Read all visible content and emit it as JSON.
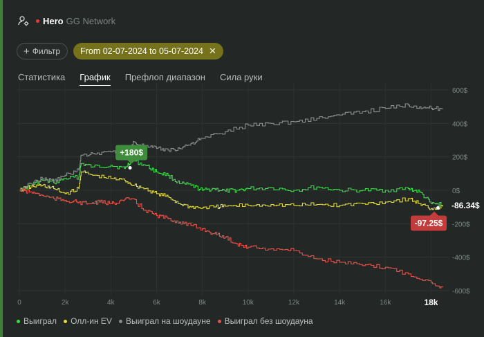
{
  "header": {
    "player": "Hero",
    "network": "GG Network",
    "user_icon": "user-settings-icon"
  },
  "filters": {
    "filter_label": "Фильтр",
    "date_range": "From 02-07-2024 to 05-07-2024"
  },
  "tabs": [
    {
      "label": "Статистика",
      "active": false
    },
    {
      "label": "График",
      "active": true
    },
    {
      "label": "Префлоп диапазон",
      "active": false
    },
    {
      "label": "Сила руки",
      "active": false
    }
  ],
  "colors": {
    "won": "#3ddc4a",
    "allin_ev": "#e3d93a",
    "showdown": "#8a8f8c",
    "non_showdown": "#e8524a"
  },
  "chart_data": {
    "type": "line",
    "xlabel": "",
    "ylabel": "",
    "x_ticks": [
      "0",
      "2k",
      "4k",
      "6k",
      "8k",
      "10k",
      "12k",
      "14k",
      "16k",
      "18k"
    ],
    "y_ticks": [
      "600$",
      "400$",
      "200$",
      "0$",
      "-200$",
      "-400$",
      "-600$"
    ],
    "xlim": [
      0,
      18500
    ],
    "ylim": [
      -600,
      600
    ],
    "grid": true,
    "series": [
      {
        "name": "Выиграл",
        "color": "#3ddc4a",
        "x": [
          0,
          500,
          1000,
          1500,
          2000,
          2600,
          2700,
          3200,
          4000,
          4600,
          4900,
          5500,
          6000,
          6500,
          7000,
          7500,
          8000,
          8500,
          9000,
          9500,
          10000,
          11000,
          12000,
          13000,
          14000,
          15000,
          16000,
          17000,
          17500,
          18000,
          18500
        ],
        "y": [
          0,
          30,
          60,
          45,
          70,
          80,
          160,
          140,
          150,
          130,
          180,
          150,
          110,
          90,
          40,
          30,
          0,
          10,
          -5,
          0,
          10,
          15,
          0,
          20,
          0,
          0,
          0,
          10,
          -10,
          -80,
          -86.34
        ]
      },
      {
        "name": "Олл-ин EV",
        "color": "#e3d93a",
        "x": [
          0,
          500,
          1000,
          1500,
          2000,
          2600,
          2700,
          3200,
          4000,
          4600,
          5000,
          5500,
          6000,
          6500,
          7000,
          7500,
          8000,
          8500,
          9000,
          10000,
          11000,
          12000,
          13000,
          14000,
          15000,
          16000,
          17000,
          17500,
          18000,
          18500
        ],
        "y": [
          0,
          20,
          30,
          10,
          -20,
          10,
          110,
          90,
          70,
          60,
          30,
          10,
          -20,
          -40,
          -80,
          -100,
          -105,
          -100,
          -95,
          -90,
          -85,
          -90,
          -85,
          -90,
          -80,
          -70,
          -50,
          -80,
          -110,
          -97.25
        ]
      },
      {
        "name": "Выиграл на шоудауне",
        "color": "#8a8f8c",
        "x": [
          0,
          500,
          1000,
          1500,
          2000,
          2600,
          2700,
          3200,
          4000,
          4800,
          5000,
          5500,
          6000,
          6500,
          7000,
          7500,
          8000,
          9000,
          10000,
          11000,
          12000,
          13000,
          14000,
          15000,
          16000,
          17000,
          17500,
          18000,
          18500
        ],
        "y": [
          0,
          40,
          70,
          55,
          90,
          120,
          210,
          220,
          230,
          240,
          290,
          260,
          250,
          240,
          250,
          280,
          310,
          350,
          390,
          400,
          410,
          430,
          450,
          470,
          490,
          510,
          500,
          490,
          490
        ]
      },
      {
        "name": "Выиграл без шоудауна",
        "color": "#e8524a",
        "x": [
          0,
          500,
          1000,
          1500,
          2000,
          2500,
          3000,
          3500,
          4000,
          4500,
          4900,
          5500,
          6000,
          6500,
          7000,
          7500,
          8000,
          8500,
          9000,
          9500,
          10000,
          11000,
          12000,
          13000,
          14000,
          15000,
          16000,
          17000,
          18000,
          18500
        ],
        "y": [
          0,
          -10,
          -30,
          -50,
          -60,
          -70,
          -80,
          -70,
          -80,
          -60,
          -50,
          -120,
          -150,
          -170,
          -190,
          -210,
          -230,
          -260,
          -280,
          -320,
          -340,
          -350,
          -360,
          -410,
          -430,
          -450,
          -460,
          -500,
          -550,
          -580
        ]
      }
    ],
    "callouts": [
      {
        "label": "+180$",
        "x": 4900,
        "y": 180,
        "color": "#3e8c3c"
      },
      {
        "label": "-86.34$",
        "series": "Выиграл"
      },
      {
        "label": "-97.25$",
        "series": "Олл-ин EV",
        "color": "#c33c3c"
      }
    ]
  },
  "legend": [
    {
      "label": "Выиграл",
      "color": "#3ddc4a"
    },
    {
      "label": "Олл-ин EV",
      "color": "#e3d93a"
    },
    {
      "label": "Выиграл на шоудауне",
      "color": "#8a8f8c"
    },
    {
      "label": "Выиграл без шоудауна",
      "color": "#e8524a"
    }
  ]
}
